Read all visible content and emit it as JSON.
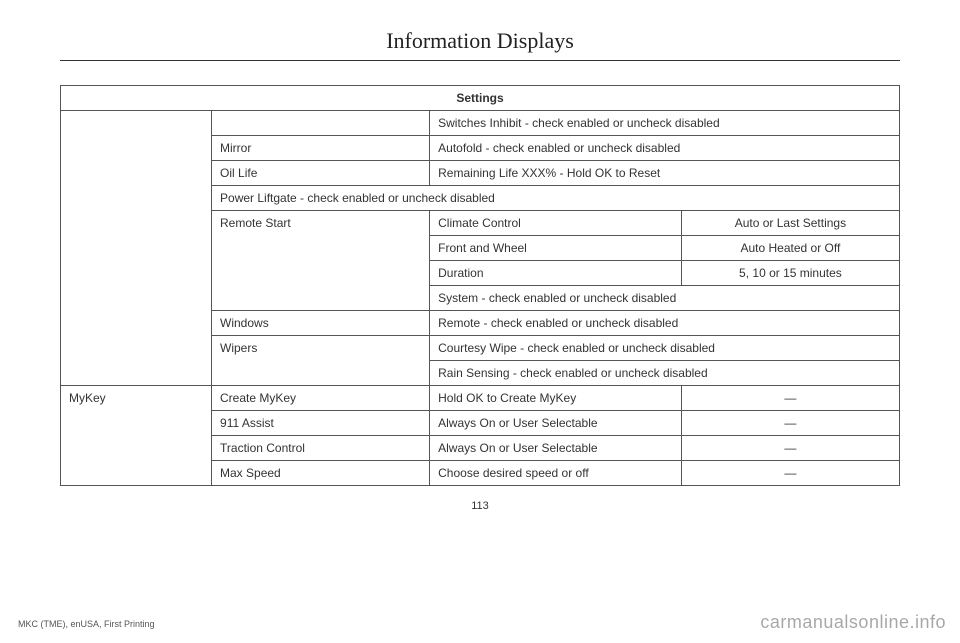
{
  "section_title": "Information Displays",
  "table_header": "Settings",
  "rows": {
    "r1_c": "Switches Inhibit - check enabled or uncheck disabled",
    "r2_b": "Mirror",
    "r2_c": "Autofold - check enabled or uncheck disabled",
    "r3_b": "Oil Life",
    "r3_c": "Remaining Life XXX% - Hold OK to Reset",
    "r4_bc": "Power Liftgate - check enabled or uncheck disabled",
    "r5_b": "Remote Start",
    "r5_c": "Climate Control",
    "r5_d": "Auto or Last Settings",
    "r6_c": "Front and Wheel",
    "r6_d": "Auto Heated or Off",
    "r7_c": "Duration",
    "r7_d": "5, 10 or 15 minutes",
    "r8_cd": "System - check enabled or uncheck disabled",
    "r9_b": "Windows",
    "r9_c": "Remote - check enabled or uncheck disabled",
    "r10_b": "Wipers",
    "r10_c": "Courtesy Wipe - check enabled or uncheck disabled",
    "r11_c": "Rain Sensing - check enabled or uncheck disabled",
    "r12_a": "MyKey",
    "r12_b": "Create MyKey",
    "r12_c": "Hold OK to Create MyKey",
    "r12_d": "—",
    "r13_b": "911 Assist",
    "r13_c": "Always On or User Selectable",
    "r13_d": "—",
    "r14_b": "Traction Control",
    "r14_c": "Always On or User Selectable",
    "r14_d": "—",
    "r15_b": "Max Speed",
    "r15_c": "Choose desired speed or off",
    "r15_d": "—"
  },
  "page_number": "113",
  "footer_text": "MKC (TME), enUSA, First Printing",
  "watermark": "carmanualsonline.info",
  "colors": {
    "text": "#333333",
    "border": "#555555",
    "background": "#ffffff",
    "watermark": "rgba(0,0,0,0.35)"
  },
  "fonts": {
    "title_family": "Georgia, serif",
    "title_size_pt": 16,
    "body_family": "Arial, sans-serif",
    "body_size_pt": 9
  }
}
